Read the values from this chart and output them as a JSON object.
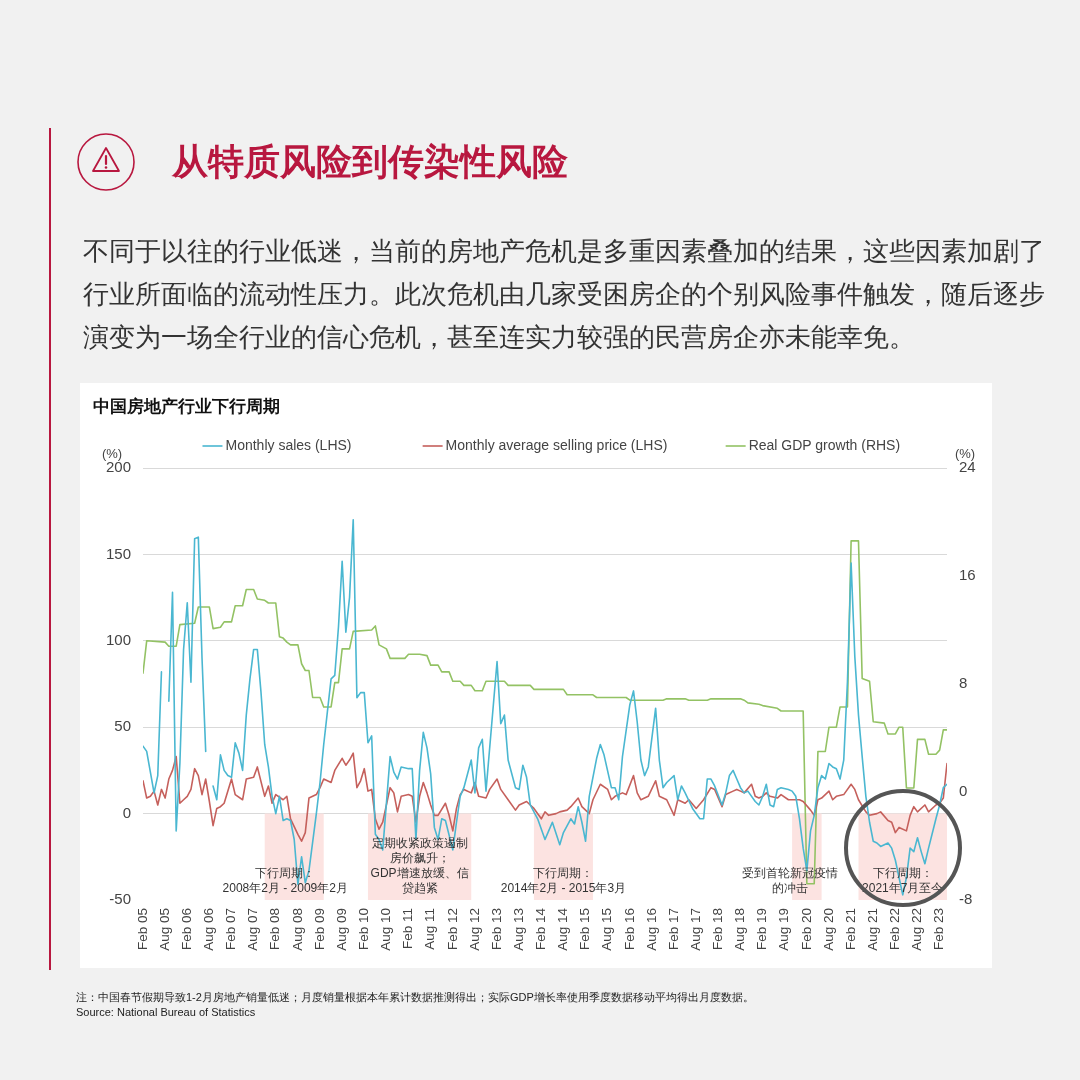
{
  "chart_data": {
    "type": "line",
    "title": "中国房地产行业下行周期",
    "ylabel": "(%)",
    "y2label": "(%)",
    "xlim": [
      "2005-02",
      "2023-04"
    ],
    "xticks": [
      {
        "value": "2005-02",
        "label": "Feb 05"
      },
      {
        "value": "2005-08",
        "label": "Aug 05"
      },
      {
        "value": "2006-02",
        "label": "Feb 06"
      },
      {
        "value": "2006-08",
        "label": "Aug 06"
      },
      {
        "value": "2007-02",
        "label": "Feb 07"
      },
      {
        "value": "2007-08",
        "label": "Aug 07"
      },
      {
        "value": "2008-02",
        "label": "Feb 08"
      },
      {
        "value": "2008-08",
        "label": "Aug 08"
      },
      {
        "value": "2009-02",
        "label": "Feb 09"
      },
      {
        "value": "2009-08",
        "label": "Aug 09"
      },
      {
        "value": "2010-02",
        "label": "Feb 10"
      },
      {
        "value": "2010-08",
        "label": "Aug 10"
      },
      {
        "value": "2011-02",
        "label": "Feb 11"
      },
      {
        "value": "2011-08",
        "label": "Aug 11"
      },
      {
        "value": "2012-02",
        "label": "Feb 12"
      },
      {
        "value": "2012-08",
        "label": "Aug 12"
      },
      {
        "value": "2013-02",
        "label": "Feb 13"
      },
      {
        "value": "2013-08",
        "label": "Aug 13"
      },
      {
        "value": "2014-02",
        "label": "Feb 14"
      },
      {
        "value": "2014-08",
        "label": "Aug 14"
      },
      {
        "value": "2015-02",
        "label": "Feb 15"
      },
      {
        "value": "2015-08",
        "label": "Aug 15"
      },
      {
        "value": "2016-02",
        "label": "Feb 16"
      },
      {
        "value": "2016-08",
        "label": "Aug 16"
      },
      {
        "value": "2017-02",
        "label": "Feb 17"
      },
      {
        "value": "2017-08",
        "label": "Aug 17"
      },
      {
        "value": "2018-02",
        "label": "Feb 18"
      },
      {
        "value": "2018-08",
        "label": "Aug 18"
      },
      {
        "value": "2019-02",
        "label": "Feb 19"
      },
      {
        "value": "2019-08",
        "label": "Aug 19"
      },
      {
        "value": "2020-02",
        "label": "Feb 20"
      },
      {
        "value": "2020-08",
        "label": "Aug 20"
      },
      {
        "value": "2021-02",
        "label": "Feb 21"
      },
      {
        "value": "2021-08",
        "label": "Aug 21"
      },
      {
        "value": "2022-02",
        "label": "Feb 22"
      },
      {
        "value": "2022-08",
        "label": "Aug 22"
      },
      {
        "value": "2023-02",
        "label": "Feb 23"
      }
    ],
    "ylim": [
      -50,
      200
    ],
    "yticks": [
      -50,
      0,
      50,
      100,
      150,
      200
    ],
    "y2lim": [
      -8,
      24
    ],
    "y2ticks": [
      -8,
      0,
      8,
      16,
      24
    ],
    "grid": "y",
    "legend": "top",
    "series": [
      {
        "name": "Monthly sales (LHS)",
        "color": "#4ab7d1",
        "x": [
          "2005-02",
          "2005-03",
          "2005-05",
          "2005-06",
          "2005-07",
          "2005-08",
          "2005-09",
          "2005-10",
          "2005-11",
          "2005-12",
          "2006-01",
          "2006-02",
          "2006-03",
          "2006-04",
          "2006-05",
          "2006-06",
          "2006-07",
          "2006-08",
          "2006-09",
          "2006-10",
          "2006-11",
          "2006-12",
          "2007-01",
          "2007-02",
          "2007-03",
          "2007-04",
          "2007-05",
          "2007-06",
          "2007-07",
          "2007-08",
          "2007-09",
          "2007-10",
          "2007-11",
          "2007-12",
          "2008-01",
          "2008-02",
          "2008-03",
          "2008-04",
          "2008-05",
          "2008-06",
          "2008-07",
          "2008-08",
          "2008-09",
          "2008-10",
          "2008-11",
          "2009-01",
          "2009-02",
          "2009-03",
          "2009-04",
          "2009-05",
          "2009-06",
          "2009-07",
          "2009-08",
          "2009-09",
          "2009-10",
          "2009-11",
          "2009-12",
          "2010-01",
          "2010-02",
          "2010-03",
          "2010-04",
          "2010-05",
          "2010-06",
          "2010-07",
          "2010-09",
          "2010-10",
          "2010-11",
          "2010-12",
          "2011-02",
          "2011-03",
          "2011-04",
          "2011-05",
          "2011-06",
          "2011-07",
          "2011-08",
          "2011-09",
          "2011-10",
          "2011-11",
          "2011-12",
          "2012-02",
          "2012-03",
          "2012-04",
          "2012-05",
          "2012-07",
          "2012-08",
          "2012-09",
          "2012-10",
          "2012-11",
          "2013-01",
          "2013-02",
          "2013-03",
          "2013-04",
          "2013-05",
          "2013-07",
          "2013-08",
          "2013-09",
          "2013-10",
          "2013-11",
          "2014-01",
          "2014-03",
          "2014-04",
          "2014-05",
          "2014-07",
          "2014-08",
          "2014-10",
          "2014-11",
          "2014-12",
          "2015-01",
          "2015-02",
          "2015-03",
          "2015-05",
          "2015-06",
          "2015-07",
          "2015-09",
          "2015-10",
          "2015-11",
          "2015-12",
          "2016-02",
          "2016-03",
          "2016-04",
          "2016-05",
          "2016-06",
          "2016-07",
          "2016-09",
          "2016-10",
          "2016-11",
          "2016-12",
          "2017-02",
          "2017-03",
          "2017-04",
          "2017-05",
          "2017-07",
          "2017-09",
          "2017-10",
          "2017-11",
          "2017-12",
          "2018-01",
          "2018-03",
          "2018-04",
          "2018-05",
          "2018-06",
          "2018-07",
          "2018-08",
          "2018-09",
          "2018-10",
          "2018-12",
          "2019-01",
          "2019-02",
          "2019-03",
          "2019-04",
          "2019-05",
          "2019-06",
          "2019-07",
          "2019-09",
          "2019-10",
          "2019-11",
          "2019-12",
          "2020-01",
          "2020-02",
          "2020-03",
          "2020-04",
          "2020-05",
          "2020-06",
          "2020-07",
          "2020-08",
          "2020-09",
          "2020-10",
          "2020-11",
          "2020-12",
          "2021-01",
          "2021-02",
          "2021-03",
          "2021-04",
          "2021-05",
          "2021-06",
          "2021-07",
          "2021-08",
          "2021-09",
          "2021-10",
          "2021-12",
          "2022-01",
          "2022-02",
          "2022-04",
          "2022-05",
          "2022-06",
          "2022-07",
          "2022-08",
          "2022-09",
          "2022-10",
          "2022-11",
          "2023-01",
          "2023-02",
          "2023-03",
          "2023-04"
        ],
        "values": [
          39,
          36,
          12,
          22,
          82,
          null,
          65,
          128,
          -10,
          29,
          95,
          122,
          76,
          159,
          160,
          90,
          36,
          null,
          16,
          8,
          34,
          25,
          22,
          21,
          41,
          35,
          25,
          57,
          78,
          95,
          95,
          70,
          40,
          27,
          10,
          0,
          10,
          -4,
          -3,
          -4,
          -15,
          -41,
          -25,
          -40,
          -33,
          0,
          18,
          40,
          59,
          78,
          80,
          108,
          146,
          105,
          125,
          170,
          67,
          70,
          70,
          41,
          45,
          -12,
          -15,
          -21,
          33,
          24,
          20,
          27,
          26,
          26,
          -15,
          25,
          47,
          38,
          23,
          -8,
          -15,
          -3,
          -4,
          -21,
          -5,
          10,
          15,
          31,
          12,
          38,
          43,
          13,
          63,
          88,
          52,
          57,
          31,
          15,
          14,
          28,
          21,
          5,
          -3,
          -15,
          -10,
          -5,
          -18,
          -11,
          -3,
          -6,
          4,
          -5,
          -16,
          10,
          32,
          40,
          34,
          15,
          15,
          8,
          33,
          63,
          71,
          53,
          31,
          22,
          27,
          61,
          31,
          15,
          18,
          22,
          8,
          16,
          12,
          3,
          -3,
          -3,
          20,
          20,
          16,
          5,
          12,
          22,
          25,
          20,
          15,
          12,
          13,
          7,
          5,
          10,
          17,
          5,
          4,
          14,
          15,
          14,
          13,
          10,
          -3,
          -20,
          -33,
          -10,
          -1,
          15,
          22,
          20,
          29,
          27,
          26,
          20,
          31,
          76,
          145,
          91,
          57,
          33,
          10,
          -5,
          -16,
          -17,
          -19,
          -17,
          -20,
          -27,
          -47,
          -37,
          -20,
          -22,
          -14,
          -22,
          -29,
          -20,
          -3,
          5,
          15,
          17
        ]
      },
      {
        "name": "Monthly average selling price (LHS)",
        "color": "#c5605c",
        "x": [
          "2005-02",
          "2005-03",
          "2005-04",
          "2005-05",
          "2005-06",
          "2005-07",
          "2005-08",
          "2005-09",
          "2005-10",
          "2005-11",
          "2005-12",
          "2006-01",
          "2006-02",
          "2006-03",
          "2006-04",
          "2006-05",
          "2006-06",
          "2006-07",
          "2006-08",
          "2006-09",
          "2006-10",
          "2006-11",
          "2006-12",
          "2007-02",
          "2007-03",
          "2007-05",
          "2007-06",
          "2007-08",
          "2007-09",
          "2007-11",
          "2007-12",
          "2008-01",
          "2008-02",
          "2008-04",
          "2008-05",
          "2008-06",
          "2008-08",
          "2008-09",
          "2008-10",
          "2008-11",
          "2009-01",
          "2009-02",
          "2009-03",
          "2009-05",
          "2009-06",
          "2009-08",
          "2009-09",
          "2009-10",
          "2009-11",
          "2009-12",
          "2010-01",
          "2010-02",
          "2010-03",
          "2010-04",
          "2010-05",
          "2010-06",
          "2010-07",
          "2010-09",
          "2010-10",
          "2010-11",
          "2010-12",
          "2011-02",
          "2011-03",
          "2011-04",
          "2011-05",
          "2011-06",
          "2011-07",
          "2011-08",
          "2011-09",
          "2011-10",
          "2011-12",
          "2012-01",
          "2012-02",
          "2012-03",
          "2012-04",
          "2012-05",
          "2012-07",
          "2012-08",
          "2012-09",
          "2012-11",
          "2012-12",
          "2013-02",
          "2013-03",
          "2013-05",
          "2013-07",
          "2013-08",
          "2013-10",
          "2013-11",
          "2013-12",
          "2014-02",
          "2014-03",
          "2014-04",
          "2014-06",
          "2014-07",
          "2014-09",
          "2014-10",
          "2014-12",
          "2015-01",
          "2015-03",
          "2015-04",
          "2015-06",
          "2015-08",
          "2015-09",
          "2015-10",
          "2015-12",
          "2016-01",
          "2016-03",
          "2016-04",
          "2016-05",
          "2016-07",
          "2016-09",
          "2016-10",
          "2016-12",
          "2017-02",
          "2017-03",
          "2017-05",
          "2017-06",
          "2017-08",
          "2017-10",
          "2017-12",
          "2018-01",
          "2018-03",
          "2018-04",
          "2018-06",
          "2018-07",
          "2018-08",
          "2018-09",
          "2018-11",
          "2018-12",
          "2019-01",
          "2019-02",
          "2019-03",
          "2019-04",
          "2019-06",
          "2019-07",
          "2019-09",
          "2019-12",
          "2020-01",
          "2020-03",
          "2020-04",
          "2020-05",
          "2020-06",
          "2020-08",
          "2020-09",
          "2020-10",
          "2020-12",
          "2021-02",
          "2021-03",
          "2021-04",
          "2021-06",
          "2021-07",
          "2021-09",
          "2021-10",
          "2021-12",
          "2022-01",
          "2022-02",
          "2022-03",
          "2022-05",
          "2022-06",
          "2022-07",
          "2022-08",
          "2022-10",
          "2022-11",
          "2023-01",
          "2023-02",
          "2023-03",
          "2023-04"
        ],
        "values": [
          19,
          9,
          10,
          13,
          5,
          14,
          9,
          20,
          25,
          33,
          6,
          8,
          10,
          14,
          26,
          22,
          11,
          20,
          7,
          -7,
          3,
          4,
          6,
          20,
          11,
          8,
          20,
          21,
          27,
          10,
          16,
          6,
          11,
          8,
          10,
          -3,
          -12,
          -16,
          -11,
          9,
          11,
          15,
          20,
          18,
          25,
          32,
          28,
          31,
          35,
          15,
          19,
          26,
          13,
          14,
          -3,
          -9,
          -5,
          15,
          12,
          1,
          10,
          11,
          10,
          -5,
          10,
          18,
          12,
          5,
          -1,
          -1,
          6,
          -1,
          -10,
          3,
          11,
          14,
          12,
          18,
          10,
          9,
          14,
          20,
          14,
          8,
          2,
          5,
          7,
          5,
          3,
          -3,
          1,
          -1,
          0,
          1,
          2,
          4,
          9,
          4,
          0,
          8,
          17,
          14,
          8,
          10,
          12,
          11,
          22,
          12,
          8,
          10,
          19,
          10,
          8,
          -1,
          8,
          6,
          8,
          3,
          8,
          15,
          14,
          4,
          11,
          13,
          14,
          13,
          12,
          17,
          10,
          9,
          10,
          12,
          10,
          9,
          11,
          8,
          8,
          7,
          2,
          -1,
          8,
          9,
          13,
          8,
          10,
          11,
          17,
          14,
          8,
          1,
          -1,
          0,
          1,
          -4,
          -5,
          -11,
          -8,
          -10,
          -1,
          4,
          1,
          5,
          1,
          5,
          6,
          9,
          29
        ]
      },
      {
        "name": "Real GDP growth (RHS)",
        "color": "#93c264",
        "axis": "y2",
        "x": [
          "2005-02",
          "2005-03",
          "2005-08",
          "2005-09",
          "2005-11",
          "2005-12",
          "2006-04",
          "2006-05",
          "2006-08",
          "2006-09",
          "2006-11",
          "2006-12",
          "2007-02",
          "2007-03",
          "2007-05",
          "2007-06",
          "2007-08",
          "2007-09",
          "2007-11",
          "2007-12",
          "2008-02",
          "2008-03",
          "2008-04",
          "2008-05",
          "2008-06",
          "2008-08",
          "2008-09",
          "2008-10",
          "2008-11",
          "2008-12",
          "2009-02",
          "2009-03",
          "2009-05",
          "2009-06",
          "2009-07",
          "2009-08",
          "2009-10",
          "2009-11",
          "2010-04",
          "2010-05",
          "2010-06",
          "2010-08",
          "2010-09",
          "2011-01",
          "2011-02",
          "2011-05",
          "2011-07",
          "2011-08",
          "2011-10",
          "2011-11",
          "2012-01",
          "2012-02",
          "2012-04",
          "2012-05",
          "2012-07",
          "2012-08",
          "2012-10",
          "2012-11",
          "2013-04",
          "2013-05",
          "2013-11",
          "2013-12",
          "2014-08",
          "2014-09",
          "2015-04",
          "2015-05",
          "2016-01",
          "2016-02",
          "2016-11",
          "2016-12",
          "2017-05",
          "2017-06",
          "2017-11",
          "2017-12",
          "2018-08",
          "2018-09",
          "2018-10",
          "2019-01",
          "2019-02",
          "2019-06",
          "2019-07",
          "2020-01",
          "2020-02",
          "2020-04",
          "2020-05",
          "2020-07",
          "2020-08",
          "2020-10",
          "2020-11",
          "2021-01",
          "2021-02",
          "2021-04",
          "2021-05",
          "2021-07",
          "2021-08",
          "2021-11",
          "2021-12",
          "2022-02",
          "2022-03",
          "2022-04",
          "2022-05",
          "2022-07",
          "2022-08",
          "2022-10",
          "2022-11",
          "2023-01",
          "2023-02",
          "2023-03",
          "2023-04"
        ],
        "values": [
          8.8,
          11.2,
          11.1,
          10.8,
          10.8,
          12.4,
          12.5,
          13.7,
          13.7,
          12.1,
          12.2,
          12.6,
          12.6,
          13.8,
          13.8,
          15,
          15,
          14.3,
          14.2,
          14,
          14,
          11.5,
          11.4,
          11.1,
          10.9,
          10.9,
          9.5,
          9,
          9,
          7,
          7,
          6.3,
          6.3,
          8.1,
          8.1,
          10.6,
          10.6,
          11.9,
          12,
          12.3,
          10.9,
          10.6,
          9.9,
          9.9,
          10.2,
          10.2,
          10.1,
          9.4,
          9.4,
          8.9,
          8.9,
          8.2,
          8.2,
          7.9,
          7.9,
          7.5,
          7.5,
          8.2,
          8.2,
          7.9,
          7.9,
          7.6,
          7.6,
          7.2,
          7.2,
          7,
          7,
          6.8,
          6.8,
          6.9,
          6.9,
          6.8,
          6.8,
          6.9,
          6.9,
          6.8,
          6.6,
          6.5,
          6.4,
          6.2,
          6,
          6,
          -6.8,
          -6.8,
          3,
          3,
          4.8,
          4.8,
          6.3,
          6.3,
          18.6,
          18.6,
          8.4,
          8.2,
          5.2,
          5.1,
          4.3,
          4.3,
          4.8,
          4.8,
          0.3,
          0.3,
          3.9,
          3.9,
          2.8,
          2.8,
          3.1,
          4.6,
          4.6
        ]
      }
    ],
    "bands": [
      {
        "axis": "x",
        "from": "2007-11",
        "to": "2009-03",
        "label": "下行周期：2008年2月 - 2009年2月",
        "color": "#fce3e1"
      },
      {
        "axis": "x",
        "from": "2010-03",
        "to": "2012-07",
        "label": "定期收紧政策遏制房价飙升；GDP增速放缓、信贷趋紧",
        "color": "#fce3e1"
      },
      {
        "axis": "x",
        "from": "2013-12",
        "to": "2015-04",
        "label": "下行周期：2014年2月 - 2015年3月",
        "color": "#fce3e1"
      },
      {
        "axis": "x",
        "from": "2019-10",
        "to": "2020-06",
        "label": "受到首轮新冠疫情的冲击",
        "color": "#fce3e1"
      },
      {
        "axis": "x",
        "from": "2021-04",
        "to": "2023-04",
        "label": "下行周期：2021年7月至今",
        "color": "#fce3e1"
      }
    ],
    "annotations": [
      "从特质风险到传染性风险",
      "不同于以往的行业低迷，当前的房地产危机是多重因素叠加的结果，这些因素加剧了行业所面临的流动性压力。此次危机由几家受困房企的个别风险事件触发，随后逐步演变为一场全行业的信心危机，甚至连实力较强的民营房企亦未能幸免。",
      "注：中国春节假期导致1-2月房地产销量低迷；月度销量根据本年累计数据推测得出；实际GDP增长率使用季度数据移动平均得出月度数据。",
      "Source: National Bureau of Statistics"
    ]
  }
}
